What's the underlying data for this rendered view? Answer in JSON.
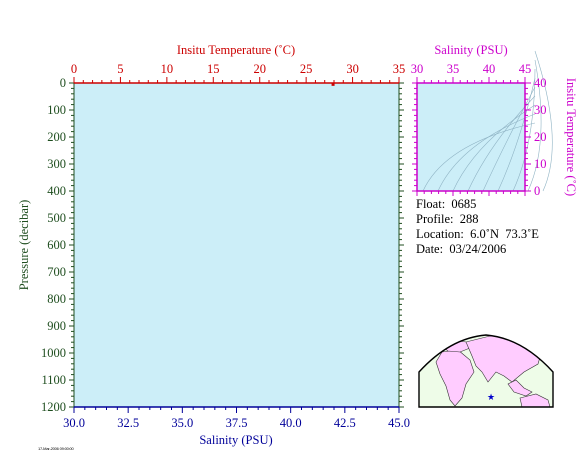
{
  "chart_data": [
    {
      "type": "line",
      "panel": "profile",
      "ylabel": "Pressure (decibar)",
      "ylim": [
        0,
        1200
      ],
      "y_ticks": [
        "0",
        "100",
        "200",
        "300",
        "400",
        "500",
        "600",
        "700",
        "800",
        "900",
        "1000",
        "1100",
        "1200"
      ],
      "y_reversed": true,
      "top_axis": {
        "label": "Insitu Temperature (˚C)",
        "range": [
          0,
          35
        ],
        "ticks": [
          "0",
          "5",
          "10",
          "15",
          "20",
          "25",
          "30",
          "35"
        ],
        "color": "#cc0000"
      },
      "bottom_axis": {
        "label": "Salinity (PSU)",
        "range": [
          30.0,
          45.0
        ],
        "ticks": [
          "30.0",
          "32.5",
          "35.0",
          "37.5",
          "40.0",
          "42.5",
          "45.0"
        ],
        "color": "#000099"
      },
      "series": [
        {
          "axis": "temperature",
          "color": "#cc0000",
          "x": [
            27.9
          ],
          "y": [
            5
          ]
        }
      ],
      "background": "#cceef8",
      "grid": false
    },
    {
      "type": "scatter",
      "panel": "ts-diagram",
      "xlabel": "Salinity (PSU)",
      "ylabel": "Insitu Temperature (˚C)",
      "xlim": [
        30,
        45
      ],
      "ylim": [
        0,
        40
      ],
      "x_ticks": [
        "30",
        "35",
        "40",
        "45"
      ],
      "y_ticks": [
        "0",
        "10",
        "20",
        "30",
        "40"
      ],
      "axis_color": "#cc00cc",
      "density_contours": true,
      "series": []
    }
  ],
  "info": {
    "float": "Float:  0685",
    "profile": "Profile:  288",
    "location": "Location:  6.0˚N  73.3˚E",
    "date": "Date:  03/24/2006"
  },
  "map": {
    "land_color": "#ffccff",
    "ocean_color": "#eefce8",
    "marker_color": "#0000cc"
  },
  "footnote": "17-Mar-2006 09:00:00"
}
